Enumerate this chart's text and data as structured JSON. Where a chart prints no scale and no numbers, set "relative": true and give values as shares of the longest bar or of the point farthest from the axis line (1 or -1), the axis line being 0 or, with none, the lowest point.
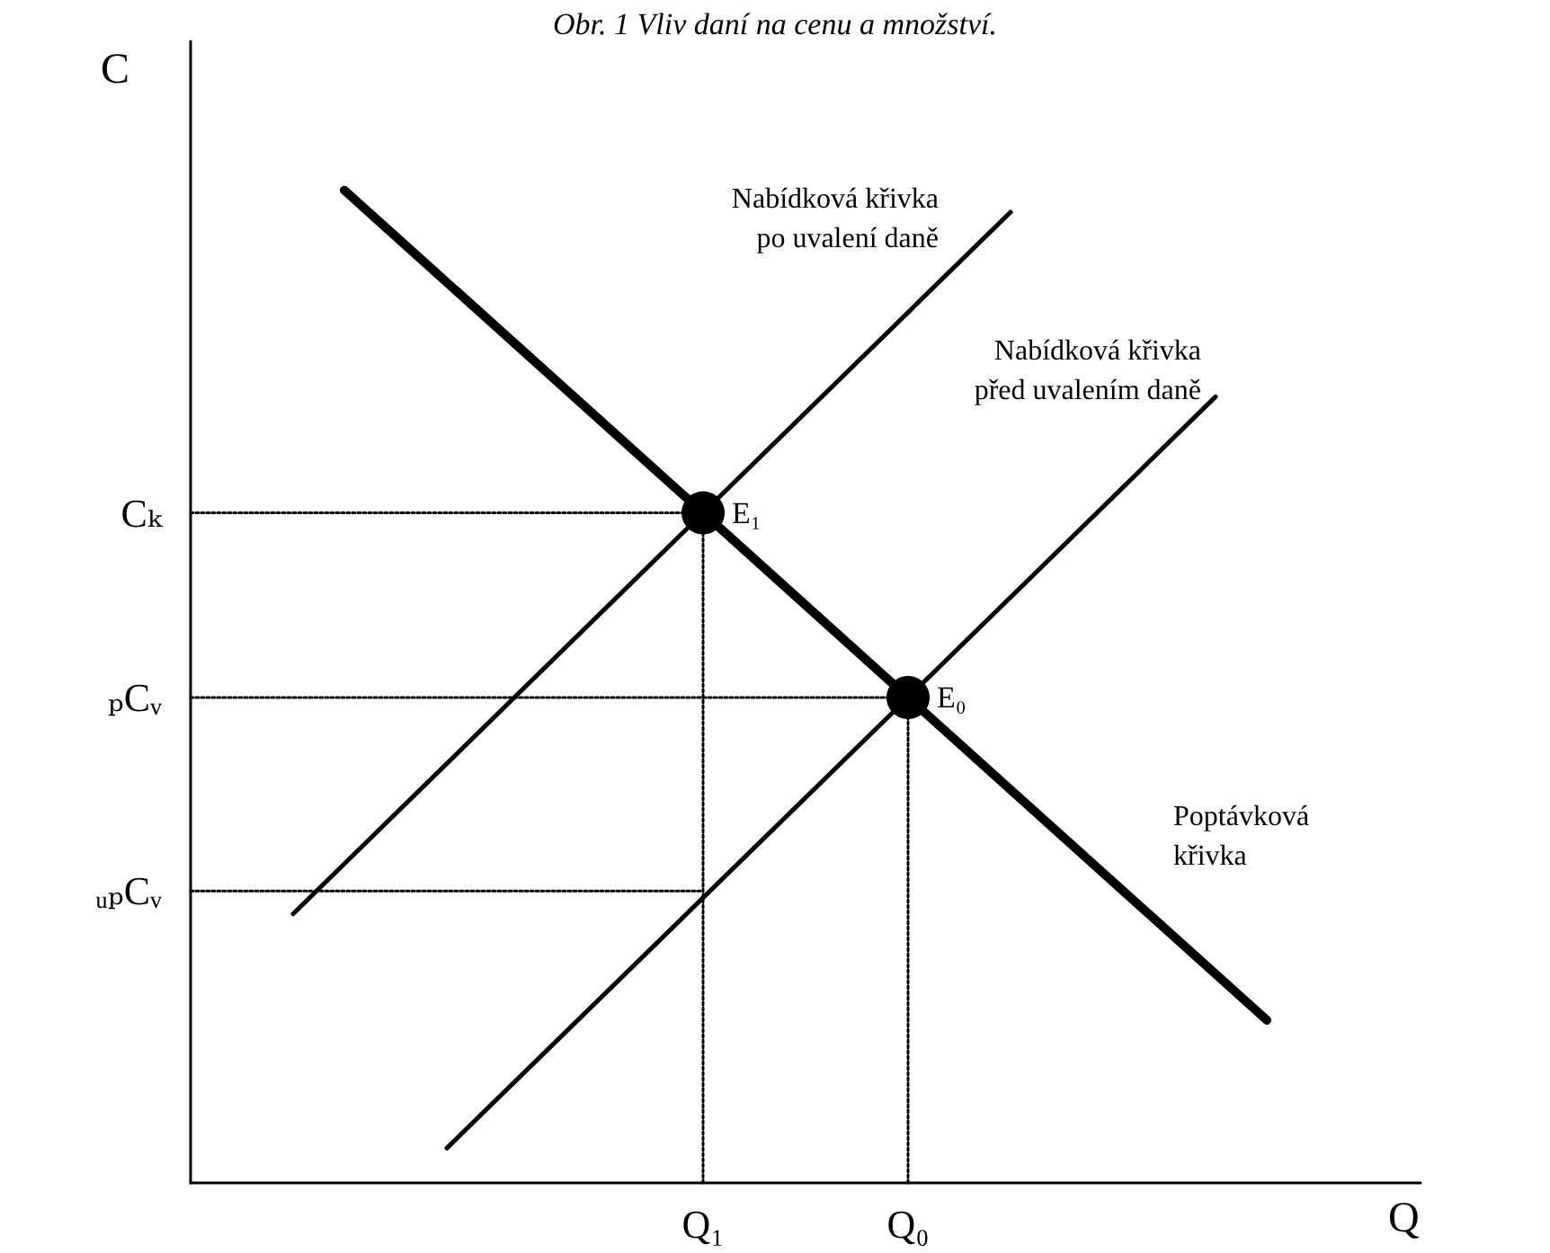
{
  "chart_data": {
    "type": "line",
    "relative": true,
    "title": "Obr. 1 Vliv daní na cenu a množství.",
    "xlabel": "Q",
    "ylabel": "C",
    "categories": [
      null,
      null,
      null,
      null,
      null,
      null,
      null,
      null,
      null,
      null,
      "Q₁",
      null,
      null,
      null,
      "Q₀",
      null,
      null,
      null,
      null,
      null,
      null,
      null,
      null,
      null,
      null
    ],
    "grid": false,
    "marker": "none",
    "line_style": "solid",
    "series": [
      {
        "name": "Poptávková\nkřivka",
        "color": "#000000",
        "values": [
          null,
          null,
          null,
          1.0,
          null,
          null,
          null,
          null,
          null,
          null,
          0.675,
          null,
          null,
          null,
          0.489,
          null,
          null,
          null,
          null,
          null,
          null,
          0.164,
          null,
          null,
          null
        ]
      },
      {
        "name": "Nabídková křivka\npo uvalení daně",
        "color": "#000000",
        "values": [
          null,
          null,
          0.271,
          null,
          null,
          null,
          null,
          null,
          null,
          null,
          0.675,
          null,
          null,
          null,
          null,
          null,
          0.978,
          null,
          null,
          null,
          null,
          null,
          null,
          null,
          null
        ]
      },
      {
        "name": "Nabídková křivka\npřed uvalením daně",
        "color": "#000000",
        "values": [
          null,
          null,
          null,
          null,
          null,
          0.035,
          null,
          null,
          null,
          null,
          null,
          null,
          null,
          null,
          0.489,
          null,
          null,
          null,
          null,
          null,
          0.792,
          null,
          null,
          null,
          null
        ]
      },
      {
        "name": "Cₖ",
        "color": "#000000",
        "line_style": "dotted",
        "values": [
          0.675,
          null,
          null,
          null,
          null,
          null,
          null,
          null,
          null,
          null,
          0.675,
          null,
          null,
          null,
          null,
          null,
          null,
          null,
          null,
          null,
          null,
          null,
          null,
          null,
          null
        ]
      },
      {
        "name": "ₚCᵥ",
        "color": "#000000",
        "line_style": "dotted",
        "values": [
          0.489,
          null,
          null,
          null,
          null,
          null,
          null,
          null,
          null,
          null,
          null,
          null,
          null,
          null,
          0.489,
          null,
          null,
          null,
          null,
          null,
          null,
          null,
          null,
          null,
          null
        ]
      },
      {
        "name": "ᵤₚCᵥ",
        "color": "#000000",
        "line_style": "dotted",
        "values": [
          0.294,
          null,
          null,
          null,
          null,
          null,
          null,
          null,
          null,
          null,
          0.294,
          null,
          null,
          null,
          null,
          null,
          null,
          null,
          null,
          null,
          null,
          null,
          null,
          null,
          null
        ]
      },
      {
        "color": "#000000",
        "line_style": "dotted",
        "x": [
          "Q₁",
          "Q₁"
        ],
        "values": [
          0,
          0.675
        ]
      },
      {
        "color": "#000000",
        "line_style": "dotted",
        "x": [
          "Q₀",
          "Q₀"
        ],
        "values": [
          0,
          0.489
        ]
      },
      {
        "type": "scatter",
        "marker": "circle",
        "color": "#000000",
        "values": [
          null,
          null,
          null,
          null,
          null,
          null,
          null,
          null,
          null,
          null,
          0.675,
          null,
          null,
          null,
          0.489,
          null,
          null,
          null,
          null,
          null,
          null,
          null,
          null,
          null,
          null
        ]
      }
    ],
    "annotations": [
      {
        "text": "E₁",
        "x": "Q₁",
        "y": 0.675
      },
      {
        "text": "E₀",
        "x": "Q₀",
        "y": 0.489
      }
    ]
  }
}
